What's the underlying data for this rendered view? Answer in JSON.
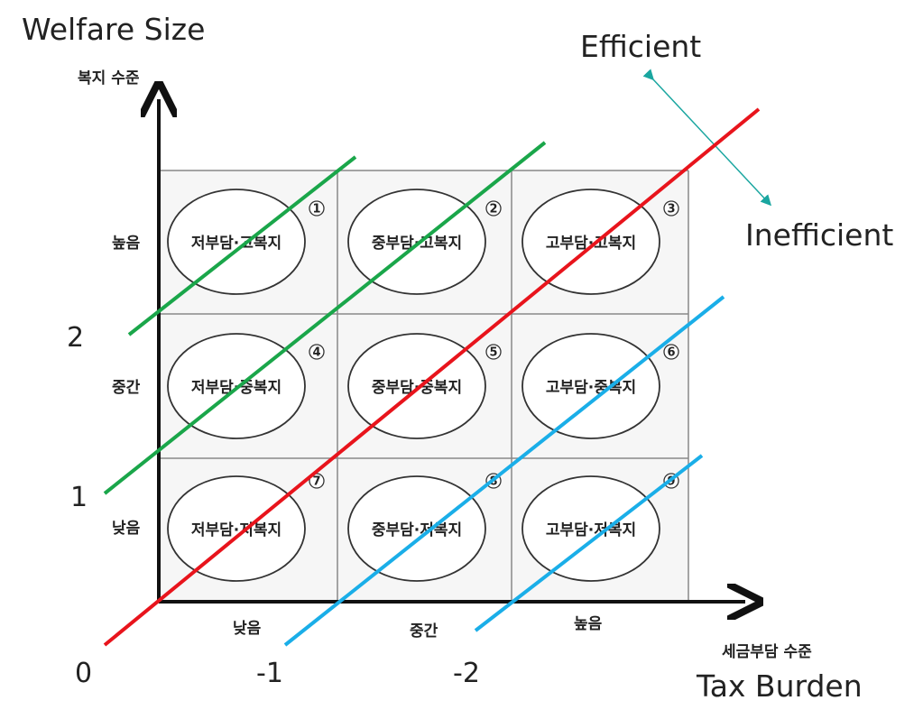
{
  "labels": {
    "welfare_size": "Welfare Size",
    "tax_burden": "Tax Burden",
    "y_axis_kr": "복지 수준",
    "x_axis_kr": "세금부담 수준",
    "efficient": "Efficient",
    "inefficient": "Inefficient"
  },
  "row_labels": [
    "높음",
    "중간",
    "낮음"
  ],
  "col_labels": [
    "낮음",
    "중간",
    "높음"
  ],
  "cells": [
    {
      "num": "1",
      "label": "저부담·고복지"
    },
    {
      "num": "2",
      "label": "중부담·고복지"
    },
    {
      "num": "3",
      "label": "고부담·고복지"
    },
    {
      "num": "4",
      "label": "저부담·중복지"
    },
    {
      "num": "5",
      "label": "중부담·중복지"
    },
    {
      "num": "6",
      "label": "고부담·중복지"
    },
    {
      "num": "7",
      "label": "저부담·저복지"
    },
    {
      "num": "8",
      "label": "중부담·저복지"
    },
    {
      "num": "9",
      "label": "고부담·저복지"
    }
  ],
  "line_labels": {
    "green_1": "2",
    "green_2": "1",
    "red": "0",
    "blue_1": "-1",
    "blue_2": "-2"
  },
  "colors": {
    "green": "#1aa64a",
    "red": "#e8141c",
    "blue": "#1aaee8",
    "arrow": "#1aa6a0",
    "axis": "#111111",
    "grid": "#888888"
  }
}
